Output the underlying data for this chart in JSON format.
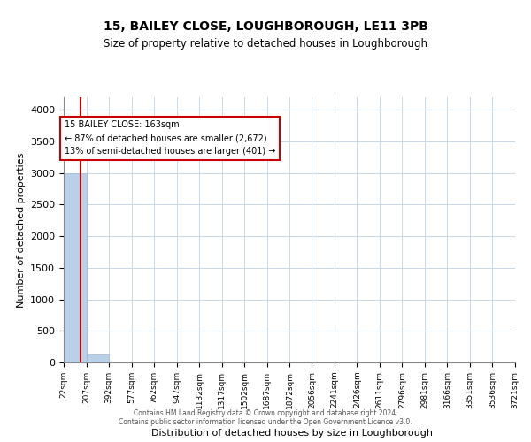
{
  "title": "15, BAILEY CLOSE, LOUGHBOROUGH, LE11 3PB",
  "subtitle": "Size of property relative to detached houses in Loughborough",
  "xlabel": "Distribution of detached houses by size in Loughborough",
  "ylabel": "Number of detached properties",
  "bin_edges": [
    22,
    207,
    392,
    577,
    762,
    947,
    1132,
    1317,
    1502,
    1687,
    1872,
    2056,
    2241,
    2426,
    2611,
    2796,
    2981,
    3166,
    3351,
    3536,
    3721
  ],
  "bin_labels": [
    "22sqm",
    "207sqm",
    "392sqm",
    "577sqm",
    "762sqm",
    "947sqm",
    "1132sqm",
    "1317sqm",
    "1502sqm",
    "1687sqm",
    "1872sqm",
    "2056sqm",
    "2241sqm",
    "2426sqm",
    "2611sqm",
    "2796sqm",
    "2981sqm",
    "3166sqm",
    "3351sqm",
    "3536sqm",
    "3721sqm"
  ],
  "bar_heights": [
    3000,
    120,
    0,
    0,
    0,
    0,
    0,
    0,
    0,
    0,
    0,
    0,
    0,
    0,
    0,
    0,
    0,
    0,
    0,
    0
  ],
  "bar_color": "#b8d0e8",
  "bar_edgecolor": "#a0b8d0",
  "property_line_x": 163,
  "property_line_color": "#cc0000",
  "annotation_title": "15 BAILEY CLOSE: 163sqm",
  "annotation_line1": "← 87% of detached houses are smaller (2,672)",
  "annotation_line2": "13% of semi-detached houses are larger (401) →",
  "annotation_box_color": "#cc0000",
  "ylim": [
    0,
    4200
  ],
  "yticks": [
    0,
    500,
    1000,
    1500,
    2000,
    2500,
    3000,
    3500,
    4000
  ],
  "footer_line1": "Contains HM Land Registry data © Crown copyright and database right 2024.",
  "footer_line2": "Contains public sector information licensed under the Open Government Licence v3.0.",
  "background_color": "#ffffff",
  "grid_color": "#c8d8e8"
}
